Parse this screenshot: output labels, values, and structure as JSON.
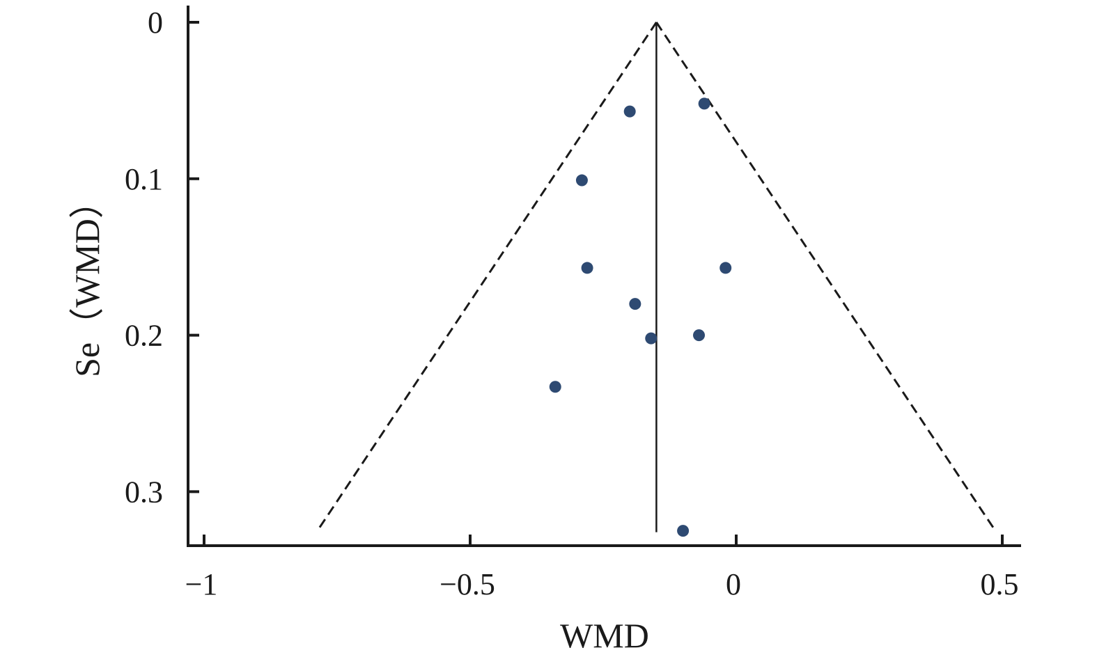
{
  "chart_data": {
    "type": "scatter",
    "subtype": "funnel plot",
    "xlabel": "WMD",
    "ylabel": "Se（WMD）",
    "xlim": [
      -1.05,
      0.53
    ],
    "ylim": [
      0,
      0.335
    ],
    "y_inverted": true,
    "xticks": [
      -1,
      -0.5,
      0,
      0.5
    ],
    "xtick_labels": [
      "−1",
      "−0.5",
      "0",
      "0.5"
    ],
    "yticks": [
      0,
      0.1,
      0.2,
      0.3
    ],
    "ytick_labels": [
      "0",
      "0.1",
      "0.2",
      "0.3"
    ],
    "pooled_estimate": -0.15,
    "funnel_limit_se": 0.325,
    "points": [
      {
        "x": -0.06,
        "y": 0.052
      },
      {
        "x": -0.2,
        "y": 0.057
      },
      {
        "x": -0.29,
        "y": 0.101
      },
      {
        "x": -0.28,
        "y": 0.157
      },
      {
        "x": -0.02,
        "y": 0.157
      },
      {
        "x": -0.19,
        "y": 0.18
      },
      {
        "x": -0.16,
        "y": 0.202
      },
      {
        "x": -0.07,
        "y": 0.2
      },
      {
        "x": -0.34,
        "y": 0.233
      },
      {
        "x": -0.1,
        "y": 0.325
      }
    ],
    "grid": false,
    "legend": "none",
    "colors": {
      "point": "#2e4a72",
      "axis": "#1a1a1a",
      "funnel": "#1a1a1a"
    }
  }
}
